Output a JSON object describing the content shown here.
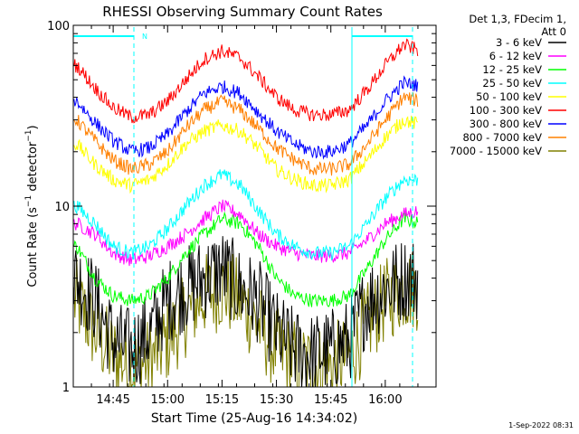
{
  "chart_data": {
    "type": "line",
    "title": "RHESSI Observing Summary Count Rates",
    "xlabel": "Start Time (25-Aug-16 14:34:02)",
    "ylabel": "Count Rate (s⁻¹ detector⁻¹)",
    "ylabel_main": "Count Rate (s",
    "ylabel_sup1": "−1",
    "ylabel_mid": " detector",
    "ylabel_sup2": "−1",
    "ylabel_end": ")",
    "yscale": "log",
    "xlim": [
      "14:34",
      "16:14"
    ],
    "ylim": [
      1,
      100
    ],
    "x_ticks": [
      "14:45",
      "15:00",
      "15:15",
      "15:30",
      "15:45",
      "16:00"
    ],
    "y_ticks": [
      "1",
      "10",
      "100"
    ],
    "legend_header": [
      "Det 1,3, FDecim 1,",
      "Att 0"
    ],
    "legend_placement": "right",
    "night_marker": "N",
    "footer": "1-Sep-2022 08:31",
    "x": [
      "14:35",
      "14:40",
      "14:45",
      "14:50",
      "14:55",
      "15:00",
      "15:05",
      "15:10",
      "15:15",
      "15:20",
      "15:25",
      "15:30",
      "15:35",
      "15:40",
      "15:45",
      "15:50",
      "15:55",
      "16:00",
      "16:05",
      "16:10"
    ],
    "series": [
      {
        "name": "3 - 6 keV",
        "color": "#000000",
        "values": [
          4,
          3,
          1.8,
          1.6,
          2,
          3,
          3.5,
          4,
          4.5,
          3.5,
          3,
          2,
          1.6,
          1.5,
          1.6,
          1.8,
          3,
          3.5,
          4,
          4
        ]
      },
      {
        "name": "6 - 12 keV",
        "color": "#ff00ff",
        "values": [
          8,
          7,
          5.5,
          5,
          5.3,
          6,
          7,
          8.5,
          10,
          9,
          7,
          6,
          5.5,
          5.3,
          5.3,
          5.5,
          6.5,
          8,
          9,
          9.5
        ]
      },
      {
        "name": "12 - 25 keV",
        "color": "#00ff00",
        "values": [
          6,
          4,
          3.2,
          3,
          3.2,
          4,
          5.5,
          7,
          8.5,
          8,
          6,
          4,
          3.2,
          3,
          3,
          3.2,
          4.5,
          6.5,
          8.5,
          8
        ]
      },
      {
        "name": "25 - 50 keV",
        "color": "#00ffff",
        "values": [
          10,
          8,
          6,
          5.5,
          6,
          7.5,
          10,
          13,
          15,
          13,
          9.5,
          7,
          6,
          5.5,
          5.5,
          6,
          8,
          11,
          14,
          14
        ]
      },
      {
        "name": "50 - 100 keV",
        "color": "#ffff00",
        "values": [
          22,
          17,
          14,
          13,
          14,
          17,
          22,
          26,
          28,
          26,
          21,
          16,
          14,
          13,
          13,
          14,
          18,
          24,
          30,
          28
        ]
      },
      {
        "name": "100 - 300 keV",
        "color": "#ff0000",
        "values": [
          60,
          45,
          35,
          31,
          32,
          38,
          50,
          65,
          72,
          66,
          52,
          40,
          34,
          32,
          32,
          34,
          44,
          60,
          78,
          72
        ]
      },
      {
        "name": "300 - 800 keV",
        "color": "#0000ff",
        "values": [
          38,
          29,
          23,
          20,
          21,
          25,
          33,
          42,
          46,
          42,
          33,
          26,
          22,
          20,
          20,
          22,
          28,
          38,
          48,
          46
        ]
      },
      {
        "name": "800 - 7000 keV",
        "color": "#ff8000",
        "values": [
          30,
          23,
          18,
          16,
          17,
          20,
          27,
          34,
          38,
          34,
          27,
          21,
          18,
          16,
          16,
          17,
          22,
          30,
          40,
          38
        ]
      },
      {
        "name": "7000 - 15000 keV",
        "color": "#808000",
        "values": [
          3,
          2,
          1.5,
          1.3,
          1.4,
          1.8,
          2.5,
          3.2,
          3.5,
          3,
          2.2,
          1.6,
          1.4,
          1.3,
          1.3,
          1.5,
          2.2,
          3,
          3.5,
          3.5
        ]
      }
    ]
  }
}
